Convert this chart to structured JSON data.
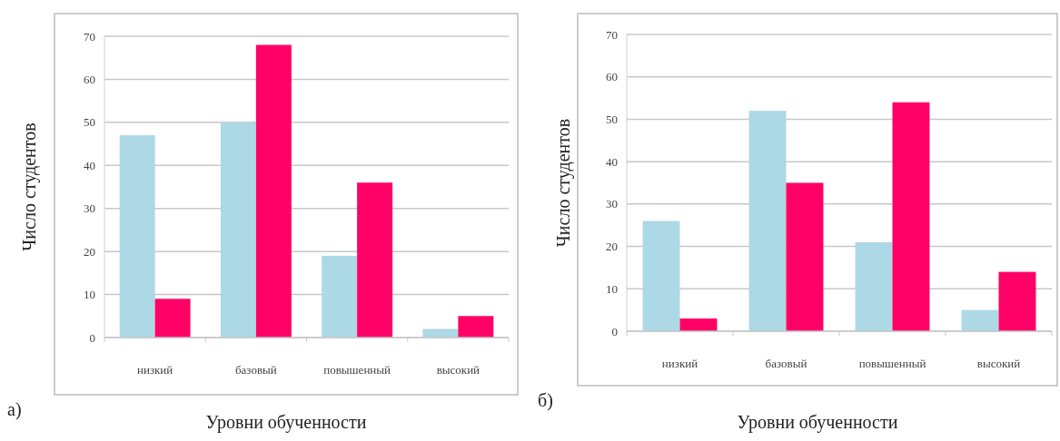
{
  "chart_data": [
    {
      "type": "bar",
      "xlabel": "Уровни обученности",
      "ylabel": "Число студентов",
      "categories": [
        "низкий",
        "базовый",
        "повышенный",
        "высокий"
      ],
      "series": [
        {
          "color": "#add8e6",
          "values": [
            47,
            50,
            19,
            2
          ]
        },
        {
          "color": "#ff0066",
          "values": [
            9,
            68,
            36,
            5
          ]
        }
      ],
      "ylim": [
        0,
        70
      ],
      "yticks": [
        0,
        10,
        20,
        30,
        40,
        50,
        60,
        70
      ],
      "grid": "y",
      "annotations": [
        "а)"
      ]
    },
    {
      "type": "bar",
      "xlabel": "Уровни обученности",
      "ylabel": "Число студентов",
      "categories": [
        "низкий",
        "базовый",
        "повышенный",
        "высокий"
      ],
      "series": [
        {
          "color": "#add8e6",
          "values": [
            26,
            52,
            21,
            5
          ]
        },
        {
          "color": "#ff0066",
          "values": [
            3,
            35,
            54,
            14
          ]
        }
      ],
      "ylim": [
        0,
        70
      ],
      "yticks": [
        0,
        10,
        20,
        30,
        40,
        50,
        60,
        70
      ],
      "grid": "y",
      "annotations": [
        "б)"
      ]
    }
  ]
}
